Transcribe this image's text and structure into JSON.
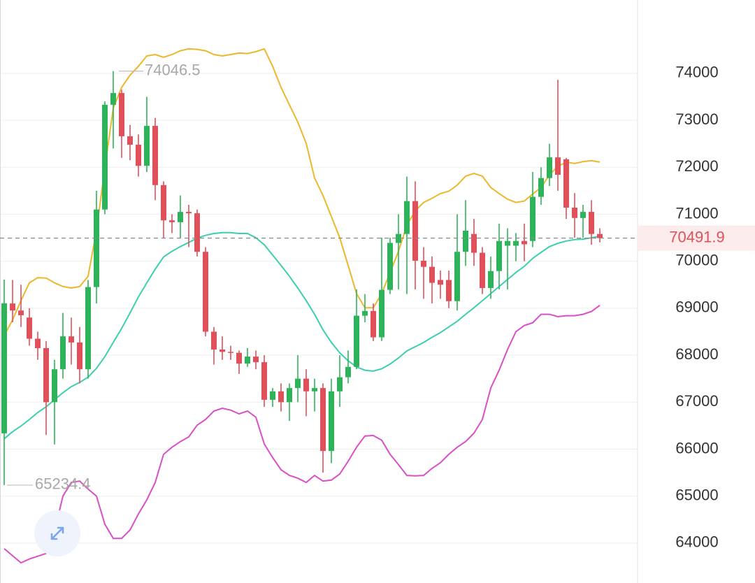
{
  "chart_data": {
    "type": "candlestick",
    "open": [
      66336,
      69100,
      68950,
      68800,
      68350,
      68150,
      67000,
      67700,
      68400,
      68270,
      67700,
      69450,
      71100,
      73330,
      73580,
      72660,
      72480,
      72030,
      72880,
      71620,
      70870,
      70830,
      71050,
      71020,
      70200,
      68500,
      68120,
      68070,
      68050,
      67820,
      67970,
      67850,
      67050,
      67230,
      67000,
      67300,
      67500,
      67230,
      67300,
      65960,
      67230,
      67530,
      67750,
      68840,
      68940,
      68380,
      69390,
      70390,
      70580,
      71280,
      70010,
      69880,
      69600,
      69600,
      69150,
      70200,
      70580,
      70180,
      69430,
      69790,
      70330,
      70330,
      70430,
      70430,
      71370,
      71770,
      72210,
      72170,
      71140,
      70920,
      71050,
      70580
    ],
    "high": [
      69610,
      69600,
      69500,
      69000,
      68500,
      68300,
      67900,
      68900,
      68800,
      68600,
      69600,
      71500,
      73400,
      74046.5,
      73650,
      72900,
      72700,
      73500,
      73050,
      71700,
      71000,
      71400,
      71200,
      71100,
      70300,
      68600,
      68400,
      68200,
      68100,
      68150,
      68100,
      68000,
      67300,
      67400,
      67400,
      68000,
      67700,
      67500,
      67400,
      67500,
      68000,
      68100,
      69400,
      69300,
      69100,
      70500,
      70500,
      71000,
      71800,
      71700,
      70300,
      70100,
      69800,
      69800,
      71000,
      71300,
      70900,
      70300,
      70100,
      70800,
      70700,
      70600,
      70800,
      71900,
      72000,
      72500,
      73860,
      72200,
      71450,
      71200,
      71300,
      70700
    ],
    "low": [
      65234.4,
      68700,
      68600,
      68200,
      67900,
      66300,
      66100,
      67500,
      67800,
      67400,
      67500,
      69100,
      71000,
      72400,
      72200,
      72150,
      71800,
      71900,
      71300,
      70500,
      70600,
      70500,
      70300,
      70100,
      68400,
      67800,
      67900,
      67900,
      67600,
      67750,
      67700,
      66900,
      66900,
      66800,
      66600,
      67000,
      66700,
      66800,
      65500,
      65700,
      66900,
      67400,
      67700,
      68700,
      68300,
      68300,
      69300,
      69400,
      69300,
      69400,
      69200,
      69100,
      69200,
      69000,
      68950,
      69900,
      69900,
      69300,
      69200,
      69400,
      69400,
      70000,
      70000,
      70300,
      71200,
      71600,
      71500,
      70900,
      70500,
      70500,
      70350,
      70400
    ],
    "close": [
      69104,
      68950,
      68850,
      68350,
      68150,
      67000,
      67700,
      68400,
      68270,
      67700,
      69450,
      71100,
      73330,
      73580,
      72660,
      72480,
      72030,
      72880,
      71620,
      70870,
      70830,
      71050,
      71020,
      70200,
      68500,
      68120,
      68070,
      68050,
      67820,
      67970,
      67850,
      67050,
      67230,
      67000,
      67300,
      67500,
      67230,
      67300,
      65960,
      67230,
      67530,
      67750,
      68840,
      68940,
      68380,
      69390,
      70390,
      70580,
      71280,
      70010,
      69880,
      69540,
      69500,
      69150,
      70200,
      70650,
      70180,
      69430,
      69790,
      70430,
      70430,
      70430,
      70360,
      71370,
      71770,
      72210,
      71840,
      71140,
      70920,
      71050,
      70580,
      70491.9
    ],
    "up_color": "#2fb35a",
    "down_color": "#e0505a",
    "lines": [
      {
        "color": "#ecb72b",
        "values": [
          68420,
          68750,
          69160,
          69540,
          69650,
          69640,
          69540,
          69460,
          69430,
          69460,
          69680,
          70650,
          71990,
          73260,
          73700,
          73960,
          74150,
          74370,
          74400,
          74340,
          74400,
          74480,
          74520,
          74510,
          74480,
          74400,
          74370,
          74400,
          74430,
          74420,
          74460,
          74520,
          74150,
          73700,
          73330,
          72960,
          72510,
          71770,
          71400,
          70950,
          70500,
          69910,
          69310,
          69010,
          69010,
          69310,
          69760,
          70210,
          70770,
          71070,
          71250,
          71340,
          71440,
          71490,
          71620,
          71810,
          71870,
          71810,
          71570,
          71440,
          71320,
          71250,
          71280,
          71430,
          71570,
          71840,
          72020,
          72110,
          72080,
          72120,
          72140,
          72110
        ]
      },
      {
        "color": "#3ccfae",
        "values": [
          66220,
          66370,
          66490,
          66630,
          66780,
          66900,
          67050,
          67200,
          67330,
          67420,
          67530,
          67720,
          67970,
          68270,
          68570,
          68900,
          69240,
          69540,
          69830,
          70090,
          70210,
          70310,
          70400,
          70490,
          70550,
          70590,
          70610,
          70610,
          70590,
          70590,
          70500,
          70350,
          70130,
          69910,
          69680,
          69430,
          69160,
          68870,
          68540,
          68270,
          68050,
          67880,
          67750,
          67680,
          67660,
          67710,
          67810,
          67940,
          68090,
          68180,
          68270,
          68380,
          68480,
          68600,
          68720,
          68870,
          69010,
          69160,
          69310,
          69460,
          69610,
          69760,
          69890,
          70060,
          70190,
          70310,
          70380,
          70430,
          70460,
          70470,
          70500,
          70530
        ]
      },
      {
        "color": "#d94fc6",
        "values": [
          63880,
          63730,
          63580,
          63660,
          63720,
          63780,
          64250,
          65000,
          65290,
          65320,
          65150,
          65000,
          64400,
          64100,
          64100,
          64280,
          64620,
          64920,
          65290,
          65890,
          66040,
          66160,
          66260,
          66510,
          66630,
          66810,
          66870,
          66830,
          66750,
          66810,
          66680,
          66110,
          65820,
          65560,
          65440,
          65380,
          65290,
          65440,
          65320,
          65340,
          65470,
          65740,
          66040,
          66280,
          66290,
          66190,
          65890,
          65670,
          65440,
          65430,
          65440,
          65590,
          65710,
          65890,
          66040,
          66160,
          66340,
          66630,
          67300,
          67680,
          68120,
          68500,
          68630,
          68690,
          68870,
          68870,
          68820,
          68840,
          68840,
          68870,
          68930,
          69060
        ]
      }
    ],
    "ylim": [
      63150,
      75560
    ],
    "yticks": [
      64000,
      65000,
      66000,
      67000,
      68000,
      69000,
      70000,
      71000,
      72000,
      73000,
      74000
    ],
    "grid": true
  }
}
